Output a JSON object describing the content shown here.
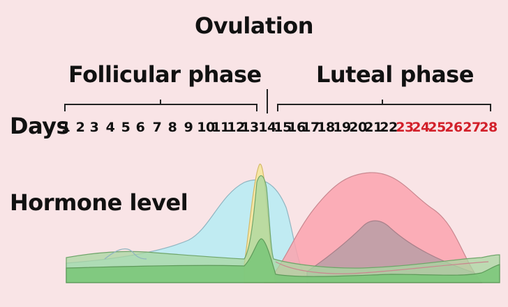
{
  "title": "Ovulation",
  "phases": {
    "follicular": "Follicular phase",
    "luteal": "Luteal phase"
  },
  "days_label": "Days",
  "hormone_label": "Hormone level",
  "days": [
    "1",
    "2",
    "3",
    "4",
    "5",
    "6",
    "7",
    "8",
    "9",
    "10",
    "11",
    "12",
    "13",
    "14",
    "15",
    "16",
    "17",
    "18",
    "19",
    "20",
    "21",
    "22",
    "23",
    "24",
    "25",
    "26",
    "27",
    "28"
  ],
  "red_days_from": 23,
  "colors": {
    "blue_hormone": "#b6ecf3",
    "red_hormone": "#fca3ae",
    "yellow_hormone": "#f6e6a0",
    "green_hormone": "#86cc7f",
    "red_day_text": "#d2202a"
  }
}
